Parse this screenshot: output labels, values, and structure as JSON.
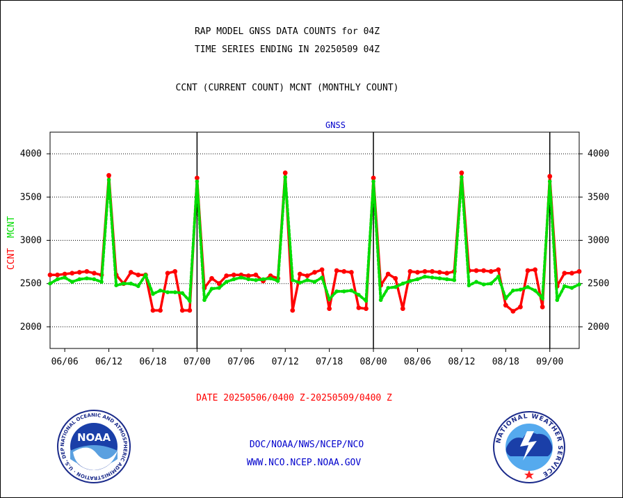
{
  "header": {
    "title_line1": "RAP MODEL GNSS DATA COUNTS for 04Z",
    "title_line2": "TIME SERIES ENDING IN 20250509 04Z",
    "subtitle": "CCNT (CURRENT COUNT) MCNT (MONTHLY COUNT)"
  },
  "footer": {
    "date_range": "DATE 20250506/0400 Z-20250509/0400 Z",
    "org_path": "DOC/NOAA/NWS/NCEP/NCO",
    "website": "WWW.NCO.NCEP.NOAA.GOV"
  },
  "logos": {
    "noaa_text": "NOAA",
    "noaa_ring": "NATIONAL OCEANIC AND ATMOSPHERIC ADMINISTRATION · U.S. DEPARTMENT OF COMMERCE",
    "nws_ring": "NATIONAL WEATHER SERVICE"
  },
  "colors": {
    "ccnt": "#ff0000",
    "mcnt": "#00dd00",
    "title": "#000000",
    "date_text": "#ff0000",
    "org_text": "#0000cc",
    "panel_label": "#0000cc"
  },
  "chart_data": {
    "type": "line",
    "panel_label": "GNSS",
    "ylabel_ccnt": "CCNT",
    "ylabel_mcnt": "MCNT",
    "ylim": [
      1750,
      4250
    ],
    "yticks": [
      2000,
      2500,
      3000,
      3500,
      4000
    ],
    "xlim": [
      0,
      72
    ],
    "x_ticks": [
      {
        "x": 2,
        "label": "06/06"
      },
      {
        "x": 8,
        "label": "06/12"
      },
      {
        "x": 14,
        "label": "06/18"
      },
      {
        "x": 20,
        "label": "07/00"
      },
      {
        "x": 26,
        "label": "07/06"
      },
      {
        "x": 32,
        "label": "07/12"
      },
      {
        "x": 38,
        "label": "07/18"
      },
      {
        "x": 44,
        "label": "08/00"
      },
      {
        "x": 50,
        "label": "08/06"
      },
      {
        "x": 56,
        "label": "08/12"
      },
      {
        "x": 62,
        "label": "08/18"
      },
      {
        "x": 68,
        "label": "09/00"
      }
    ],
    "day_boundaries": [
      20,
      44,
      68
    ],
    "grid": true,
    "series": [
      {
        "name": "CCNT",
        "color": "#ff0000",
        "style": "solid",
        "values": [
          2600,
          2600,
          2610,
          2620,
          2630,
          2640,
          2620,
          2600,
          3750,
          2600,
          2500,
          2630,
          2600,
          2600,
          2190,
          2190,
          2620,
          2640,
          2190,
          2190,
          3720,
          2450,
          2560,
          2500,
          2590,
          2600,
          2600,
          2590,
          2600,
          2530,
          2590,
          2560,
          3780,
          2190,
          2610,
          2590,
          2630,
          2660,
          2210,
          2650,
          2640,
          2630,
          2220,
          2210,
          3720,
          2480,
          2610,
          2560,
          2210,
          2640,
          2630,
          2640,
          2640,
          2630,
          2620,
          2640,
          3780,
          2650,
          2650,
          2650,
          2640,
          2660,
          2250,
          2180,
          2230,
          2650,
          2660,
          2230,
          3740,
          2470,
          2620,
          2620,
          2640
        ]
      },
      {
        "name": "MCNT",
        "color": "#00dd00",
        "style": "dotted",
        "values": [
          2500,
          2550,
          2570,
          2520,
          2550,
          2560,
          2550,
          2520,
          3700,
          2480,
          2500,
          2500,
          2470,
          2600,
          2380,
          2420,
          2400,
          2400,
          2390,
          2300,
          3680,
          2310,
          2440,
          2450,
          2520,
          2550,
          2570,
          2550,
          2540,
          2550,
          2560,
          2530,
          3730,
          2540,
          2510,
          2540,
          2520,
          2570,
          2320,
          2410,
          2410,
          2420,
          2370,
          2300,
          3680,
          2310,
          2450,
          2460,
          2500,
          2530,
          2550,
          2580,
          2570,
          2560,
          2550,
          2540,
          3730,
          2480,
          2520,
          2490,
          2500,
          2580,
          2330,
          2420,
          2430,
          2460,
          2420,
          2330,
          3680,
          2310,
          2470,
          2450,
          2490
        ]
      }
    ]
  }
}
